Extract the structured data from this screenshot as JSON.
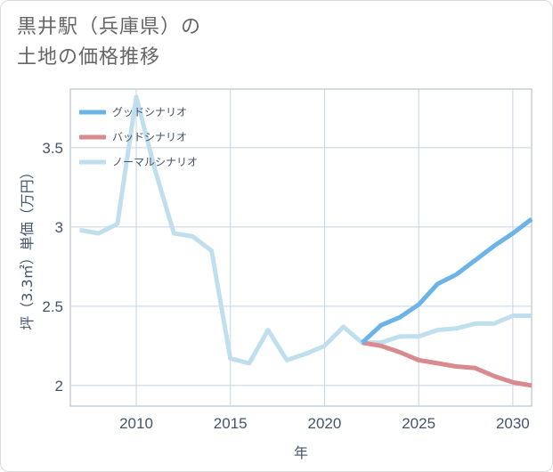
{
  "title": {
    "line1": "黒井駅（兵庫県）の",
    "line2": "土地の価格推移"
  },
  "chart_data": {
    "type": "line",
    "xlabel": "年",
    "ylabel": "坪（3.3㎡）単価（万円）",
    "xlim": [
      2006.5,
      2031
    ],
    "ylim": [
      1.87,
      3.87
    ],
    "xticks": [
      2010,
      2015,
      2020,
      2025,
      2030
    ],
    "yticks": [
      2,
      2.5,
      3,
      3.5
    ],
    "xtick_labels": [
      "2010",
      "2015",
      "2020",
      "2025",
      "2030"
    ],
    "ytick_labels": [
      "2",
      "2.5",
      "3",
      "3.5"
    ],
    "grid": true,
    "legend_position": "top-left",
    "series": [
      {
        "name": "グッドシナリオ",
        "color": "#6cb4e8",
        "x": [
          2022,
          2023,
          2024,
          2025,
          2026,
          2027,
          2028,
          2029,
          2030,
          2031
        ],
        "y": [
          2.27,
          2.38,
          2.43,
          2.51,
          2.64,
          2.7,
          2.79,
          2.88,
          2.96,
          3.05
        ]
      },
      {
        "name": "バッドシナリオ",
        "color": "#d98a8e",
        "x": [
          2022,
          2023,
          2024,
          2025,
          2026,
          2027,
          2028,
          2029,
          2030,
          2031
        ],
        "y": [
          2.27,
          2.25,
          2.21,
          2.16,
          2.14,
          2.12,
          2.11,
          2.06,
          2.02,
          2.0
        ]
      },
      {
        "name": "ノーマルシナリオ",
        "color": "#c0dfee",
        "x": [
          2007,
          2008,
          2009,
          2010,
          2011,
          2012,
          2013,
          2014,
          2015,
          2016,
          2017,
          2018,
          2019,
          2020,
          2021,
          2022,
          2023,
          2024,
          2025,
          2026,
          2027,
          2028,
          2029,
          2030,
          2031
        ],
        "y": [
          2.98,
          2.96,
          3.02,
          3.82,
          3.36,
          2.96,
          2.94,
          2.85,
          2.17,
          2.14,
          2.35,
          2.16,
          2.2,
          2.25,
          2.37,
          2.27,
          2.27,
          2.31,
          2.31,
          2.35,
          2.36,
          2.39,
          2.39,
          2.44,
          2.44
        ]
      }
    ]
  }
}
